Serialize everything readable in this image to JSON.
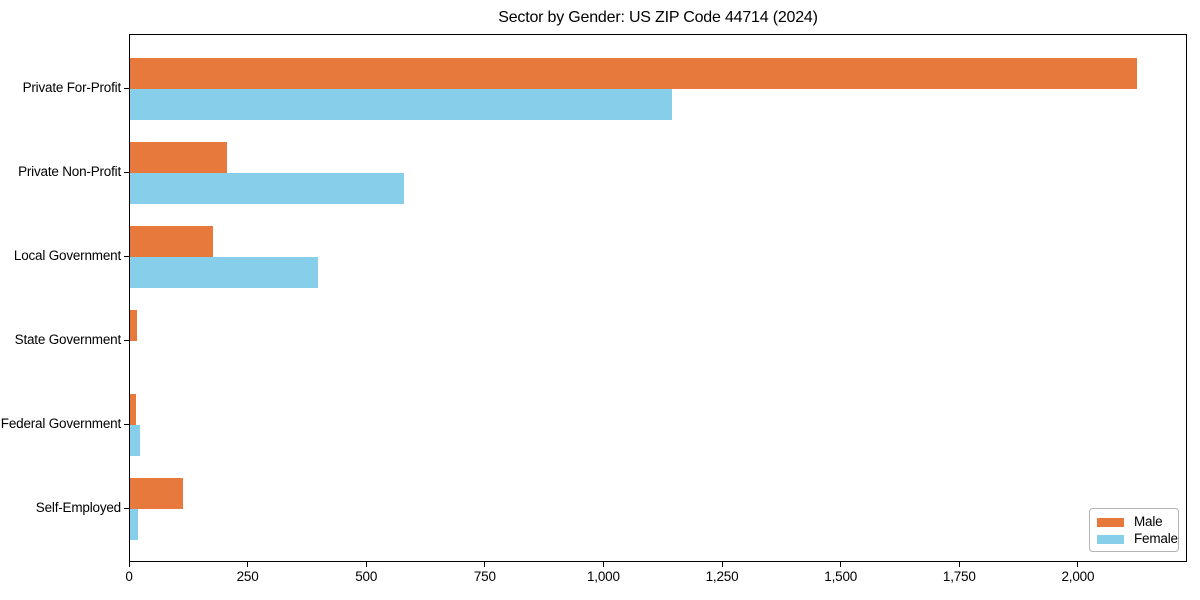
{
  "page": {
    "background": "#ffffff"
  },
  "chart_data": {
    "type": "bar",
    "orientation": "horizontal",
    "title": "Sector by Gender: US ZIP Code 44714 (2024)",
    "xlabel": "",
    "ylabel": "",
    "categories": [
      "Private For-Profit",
      "Private Non-Profit",
      "Local Government",
      "State Government",
      "Federal Government",
      "Self-Employed"
    ],
    "series": [
      {
        "name": "Male",
        "color": "#e8793d",
        "values": [
          2123,
          204,
          174,
          15,
          12,
          111
        ]
      },
      {
        "name": "Female",
        "color": "#87ceeb",
        "values": [
          1143,
          578,
          397,
          0,
          22,
          16
        ]
      }
    ],
    "xlim": [
      0,
      2230
    ],
    "xticks": [
      0,
      250,
      500,
      750,
      1000,
      1250,
      1500,
      1750,
      2000
    ],
    "xtick_labels": [
      "0",
      "250",
      "500",
      "750",
      "1,000",
      "1,250",
      "1,500",
      "1,750",
      "2,000"
    ],
    "grid": false,
    "legend": {
      "position": "lower right"
    }
  }
}
